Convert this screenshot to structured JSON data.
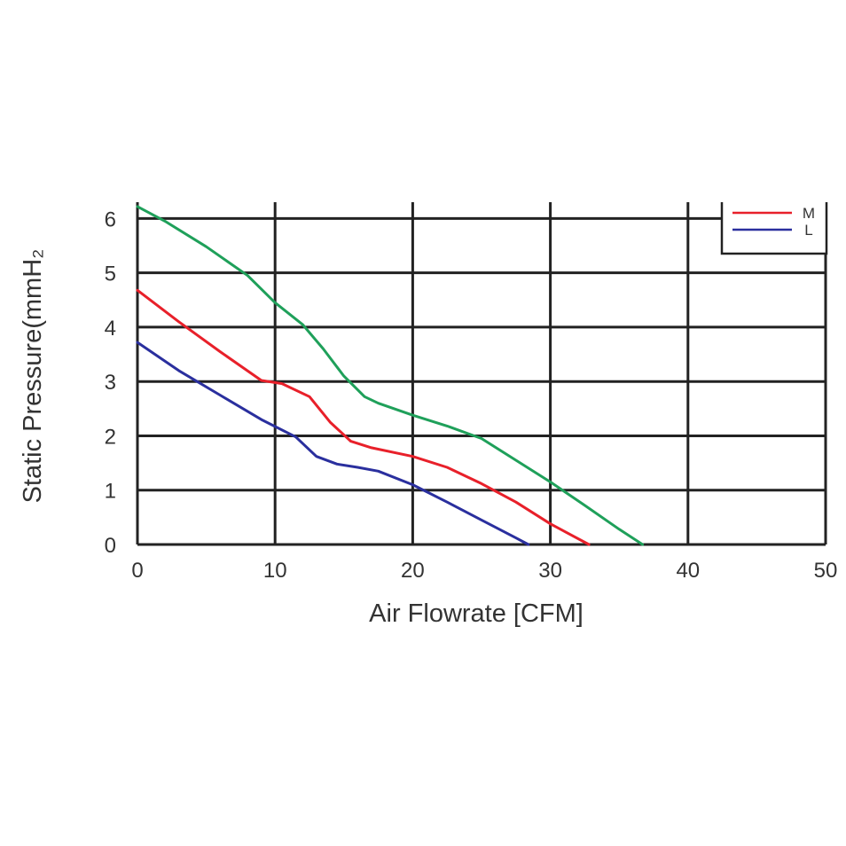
{
  "chart_data": {
    "type": "line",
    "xlabel": "Air  Flowrate   [CFM]",
    "ylabel": "Static Pressure(mmH₂",
    "xlim": [
      0,
      50
    ],
    "ylim": [
      0,
      6.3
    ],
    "xticks": [
      "0",
      "10",
      "20",
      "30",
      "40",
      "50"
    ],
    "yticks": [
      "0",
      "1",
      "2",
      "3",
      "4",
      "5",
      "6"
    ],
    "grid": true,
    "legend_position": "top-right",
    "series": [
      {
        "name": "",
        "color": "#1fa05a",
        "x": [
          0,
          2,
          5,
          8,
          10,
          12,
          13.5,
          15,
          16.5,
          17.5,
          20,
          22.5,
          25,
          27.5,
          30,
          32.5,
          35,
          36.7
        ],
        "y": [
          6.22,
          5.95,
          5.48,
          4.95,
          4.45,
          4.05,
          3.6,
          3.1,
          2.72,
          2.6,
          2.38,
          2.18,
          1.95,
          1.55,
          1.15,
          0.72,
          0.28,
          0
        ]
      },
      {
        "name": "M",
        "color": "#e8202a",
        "x": [
          0,
          3,
          6,
          9,
          10.5,
          12.5,
          14,
          15.5,
          17,
          20,
          22.5,
          25,
          27.5,
          30,
          32.8
        ],
        "y": [
          4.68,
          4.1,
          3.55,
          3.02,
          2.96,
          2.72,
          2.25,
          1.9,
          1.78,
          1.62,
          1.42,
          1.12,
          0.78,
          0.38,
          0
        ]
      },
      {
        "name": "L",
        "color": "#2a2f9e",
        "x": [
          0,
          3,
          6,
          9,
          11.5,
          13,
          14.5,
          16,
          17.5,
          20,
          22.5,
          25,
          27.5,
          28.4
        ],
        "y": [
          3.72,
          3.2,
          2.75,
          2.3,
          1.98,
          1.62,
          1.48,
          1.42,
          1.35,
          1.1,
          0.78,
          0.45,
          0.12,
          0
        ]
      }
    ]
  }
}
